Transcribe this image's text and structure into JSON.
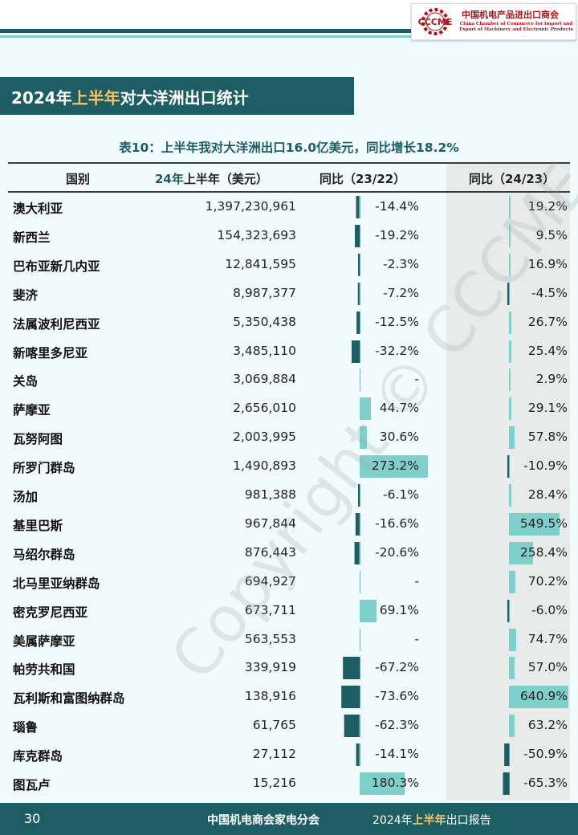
{
  "logo": {
    "abbr": "CCCME",
    "name_cn": "中国机电产品进出口商会",
    "name_en": "China Chamber of Commerce for Import and Export of Machinery and Electronic Products"
  },
  "title": {
    "part1": "2024年",
    "highlight": "上半年",
    "part2": "对大洋洲出口统计"
  },
  "table": {
    "caption": "表10：上半年我对大洋洲出口16.0亿美元，同比增长18.2%",
    "headers": {
      "country": "国别",
      "value_hl": "24年",
      "value_rest": "上半年（美元）",
      "yoy1": "同比（23/22）",
      "yoy2": "同比（24/23）"
    },
    "rows": [
      {
        "name": "澳大利亚",
        "value": "1,397,230,961",
        "yoy1": "-14.4%",
        "yoy2": "19.2%",
        "yoy1_num": -14.4,
        "yoy2_num": 19.2
      },
      {
        "name": "新西兰",
        "value": "154,323,693",
        "yoy1": "-19.2%",
        "yoy2": "9.5%",
        "yoy1_num": -19.2,
        "yoy2_num": 9.5
      },
      {
        "name": "巴布亚新几内亚",
        "value": "12,841,595",
        "yoy1": "-2.3%",
        "yoy2": "16.9%",
        "yoy1_num": -2.3,
        "yoy2_num": 16.9
      },
      {
        "name": "斐济",
        "value": "8,987,377",
        "yoy1": "-7.2%",
        "yoy2": "-4.5%",
        "yoy1_num": -7.2,
        "yoy2_num": -4.5
      },
      {
        "name": "法属波利尼西亚",
        "value": "5,350,438",
        "yoy1": "-12.5%",
        "yoy2": "26.7%",
        "yoy1_num": -12.5,
        "yoy2_num": 26.7
      },
      {
        "name": "新喀里多尼亚",
        "value": "3,485,110",
        "yoy1": "-32.2%",
        "yoy2": "25.4%",
        "yoy1_num": -32.2,
        "yoy2_num": 25.4
      },
      {
        "name": "关岛",
        "value": "3,069,884",
        "yoy1": "-",
        "yoy2": "2.9%",
        "yoy1_num": null,
        "yoy2_num": 2.9
      },
      {
        "name": "萨摩亚",
        "value": "2,656,010",
        "yoy1": "44.7%",
        "yoy2": "29.1%",
        "yoy1_num": 44.7,
        "yoy2_num": 29.1
      },
      {
        "name": "瓦努阿图",
        "value": "2,003,995",
        "yoy1": "30.6%",
        "yoy2": "57.8%",
        "yoy1_num": 30.6,
        "yoy2_num": 57.8
      },
      {
        "name": "所罗门群岛",
        "value": "1,490,893",
        "yoy1": "273.2%",
        "yoy2": "-10.9%",
        "yoy1_num": 273.2,
        "yoy2_num": -10.9
      },
      {
        "name": "汤加",
        "value": "981,388",
        "yoy1": "-6.1%",
        "yoy2": "28.4%",
        "yoy1_num": -6.1,
        "yoy2_num": 28.4
      },
      {
        "name": "基里巴斯",
        "value": "967,844",
        "yoy1": "-16.6%",
        "yoy2": "549.5%",
        "yoy1_num": -16.6,
        "yoy2_num": 549.5
      },
      {
        "name": "马绍尔群岛",
        "value": "876,443",
        "yoy1": "-20.6%",
        "yoy2": "258.4%",
        "yoy1_num": -20.6,
        "yoy2_num": 258.4
      },
      {
        "name": "北马里亚纳群岛",
        "value": "694,927",
        "yoy1": "-",
        "yoy2": "70.2%",
        "yoy1_num": null,
        "yoy2_num": 70.2
      },
      {
        "name": "密克罗尼西亚",
        "value": "673,711",
        "yoy1": "69.1%",
        "yoy2": "-6.0%",
        "yoy1_num": 69.1,
        "yoy2_num": -6.0
      },
      {
        "name": "美属萨摩亚",
        "value": "563,553",
        "yoy1": "-",
        "yoy2": "74.7%",
        "yoy1_num": null,
        "yoy2_num": 74.7
      },
      {
        "name": "帕劳共和国",
        "value": "339,919",
        "yoy1": "-67.2%",
        "yoy2": "57.0%",
        "yoy1_num": -67.2,
        "yoy2_num": 57.0
      },
      {
        "name": "瓦利斯和富图纳群岛",
        "value": "138,916",
        "yoy1": "-73.6%",
        "yoy2": "640.9%",
        "yoy1_num": -73.6,
        "yoy2_num": 640.9
      },
      {
        "name": "瑙鲁",
        "value": "61,765",
        "yoy1": "-62.3%",
        "yoy2": "63.2%",
        "yoy1_num": -62.3,
        "yoy2_num": 63.2
      },
      {
        "name": "库克群岛",
        "value": "27,112",
        "yoy1": "-14.1%",
        "yoy2": "-50.9%",
        "yoy1_num": -14.1,
        "yoy2_num": -50.9
      },
      {
        "name": "图瓦卢",
        "value": "15,216",
        "yoy1": "180.3%",
        "yoy2": "-65.3%",
        "yoy1_num": 180.3,
        "yoy2_num": -65.3
      }
    ]
  },
  "watermark": "Copyright © CCCME",
  "footer": {
    "page": "30",
    "org": "中国机电商会家电分会",
    "report_part1": "2024年",
    "report_highlight": "上半年",
    "report_part2": "出口报告"
  },
  "colors": {
    "primary": "#1c5e63",
    "accent_light": "#7fd0cb",
    "highlight": "#f5c56a",
    "logo_red": "#b0121b"
  }
}
